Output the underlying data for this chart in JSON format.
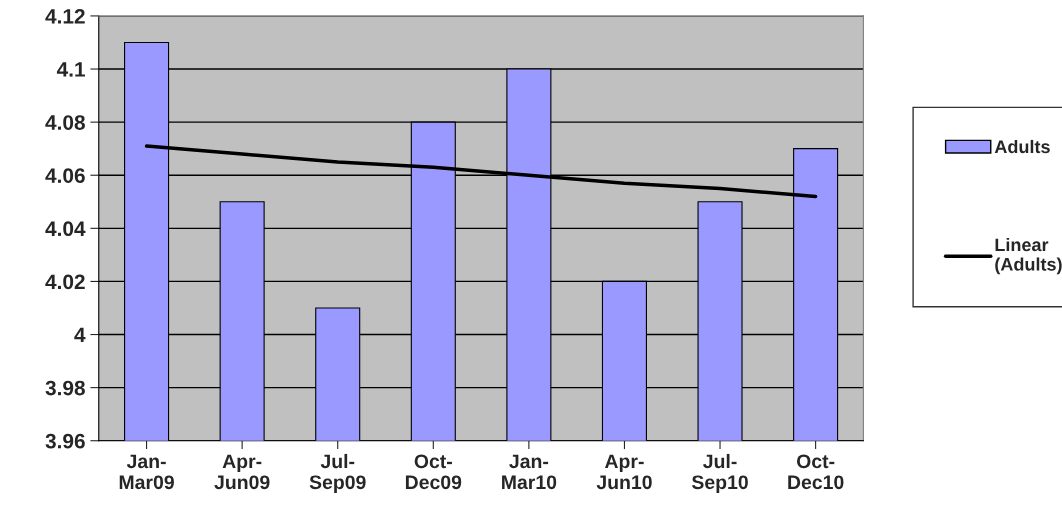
{
  "chart_data": {
    "type": "bar",
    "categories": [
      "Jan-Mar09",
      "Apr-Jun09",
      "Jul-Sep09",
      "Oct-Dec09",
      "Jan-Mar10",
      "Apr-Jun10",
      "Jul-Sep10",
      "Oct-Dec10"
    ],
    "series": [
      {
        "name": "Adults",
        "color": "#9999ff",
        "values": [
          4.11,
          4.05,
          4.01,
          4.08,
          4.1,
          4.02,
          4.05,
          4.07
        ]
      },
      {
        "name": "Linear (Adults)",
        "type": "line",
        "color": "#000000",
        "values": [
          4.071,
          4.068,
          4.065,
          4.063,
          4.06,
          4.057,
          4.055,
          4.052
        ]
      }
    ],
    "ylim": [
      3.96,
      4.12
    ],
    "yticks": [
      3.96,
      3.98,
      4,
      4.02,
      4.04,
      4.06,
      4.08,
      4.1,
      4.12
    ],
    "grid": "y",
    "legend": "right",
    "marker": "none"
  }
}
